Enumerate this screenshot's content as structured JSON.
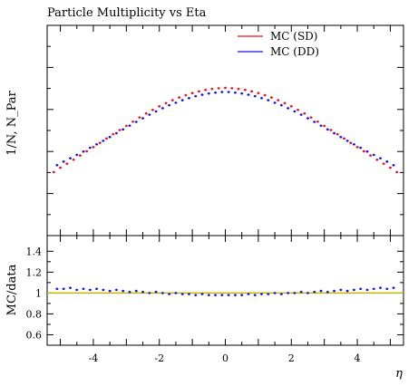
{
  "chart_data": {
    "type": "scatter",
    "title": "Particle Multiplicity vs Eta",
    "xlabel": "η",
    "ylabel": "1/N, N_Par",
    "xlim": [
      -5.4,
      5.4
    ],
    "main_panel": {
      "ylim": [
        0,
        1
      ],
      "y_ticks_labeled": false,
      "legend_position": "top-right",
      "series": [
        {
          "name": "MC (SD)",
          "color": "#e8141e",
          "x": [
            -5.2,
            -5.0,
            -4.8,
            -4.6,
            -4.4,
            -4.2,
            -4.0,
            -3.8,
            -3.6,
            -3.4,
            -3.2,
            -3.0,
            -2.8,
            -2.6,
            -2.4,
            -2.2,
            -2.0,
            -1.8,
            -1.6,
            -1.4,
            -1.2,
            -1.0,
            -0.8,
            -0.6,
            -0.4,
            -0.2,
            0.0,
            0.2,
            0.4,
            0.6,
            0.8,
            1.0,
            1.2,
            1.4,
            1.6,
            1.8,
            2.0,
            2.2,
            2.4,
            2.6,
            2.8,
            3.0,
            3.2,
            3.4,
            3.6,
            3.8,
            4.0,
            4.2,
            4.4,
            4.6,
            4.8,
            5.0,
            5.2
          ],
          "y": [
            0.302,
            0.323,
            0.342,
            0.361,
            0.381,
            0.401,
            0.421,
            0.441,
            0.462,
            0.482,
            0.502,
            0.522,
            0.542,
            0.562,
            0.581,
            0.598,
            0.615,
            0.63,
            0.644,
            0.657,
            0.668,
            0.678,
            0.686,
            0.693,
            0.698,
            0.701,
            0.703,
            0.701,
            0.698,
            0.693,
            0.686,
            0.678,
            0.668,
            0.657,
            0.644,
            0.63,
            0.615,
            0.598,
            0.581,
            0.562,
            0.542,
            0.522,
            0.502,
            0.482,
            0.462,
            0.441,
            0.421,
            0.401,
            0.381,
            0.361,
            0.342,
            0.323,
            0.302
          ]
        },
        {
          "name": "MC (DD)",
          "color": "#1414e6",
          "x": [
            -5.1,
            -4.9,
            -4.7,
            -4.5,
            -4.3,
            -4.1,
            -3.9,
            -3.7,
            -3.5,
            -3.3,
            -3.1,
            -2.9,
            -2.7,
            -2.5,
            -2.3,
            -2.1,
            -1.9,
            -1.7,
            -1.5,
            -1.3,
            -1.1,
            -0.9,
            -0.7,
            -0.5,
            -0.3,
            -0.1,
            0.1,
            0.3,
            0.5,
            0.7,
            0.9,
            1.1,
            1.3,
            1.5,
            1.7,
            1.9,
            2.1,
            2.3,
            2.5,
            2.7,
            2.9,
            3.1,
            3.3,
            3.5,
            3.7,
            3.9,
            4.1,
            4.3,
            4.5,
            4.7,
            4.9,
            5.1
          ],
          "y": [
            0.335,
            0.352,
            0.368,
            0.384,
            0.4,
            0.418,
            0.434,
            0.451,
            0.469,
            0.487,
            0.505,
            0.523,
            0.541,
            0.558,
            0.575,
            0.591,
            0.606,
            0.62,
            0.632,
            0.644,
            0.654,
            0.663,
            0.67,
            0.676,
            0.68,
            0.683,
            0.683,
            0.68,
            0.676,
            0.67,
            0.663,
            0.654,
            0.644,
            0.632,
            0.62,
            0.606,
            0.591,
            0.575,
            0.558,
            0.541,
            0.523,
            0.505,
            0.487,
            0.469,
            0.451,
            0.434,
            0.418,
            0.4,
            0.384,
            0.368,
            0.352,
            0.335
          ]
        }
      ]
    },
    "ratio_panel": {
      "ylabel": "MC/data",
      "ylim": [
        0.5,
        1.55
      ],
      "y_ticks": [
        0.6,
        0.8,
        1,
        1.2,
        1.4
      ],
      "y_tick_labels": [
        "0.6",
        "0.8",
        "1",
        "1.2",
        "1.4"
      ],
      "x_ticks": [
        -4,
        -2,
        0,
        2,
        4
      ],
      "x_tick_labels": [
        "-4",
        "-2",
        "0",
        "2",
        "4"
      ],
      "reference_line": {
        "y": 1,
        "color": "#c8b400"
      },
      "series": [
        {
          "name": "MC (DD)",
          "color": "#1414e6",
          "x": [
            -5.1,
            -4.9,
            -4.7,
            -4.5,
            -4.3,
            -4.1,
            -3.9,
            -3.7,
            -3.5,
            -3.3,
            -3.1,
            -2.9,
            -2.7,
            -2.5,
            -2.3,
            -2.1,
            -1.9,
            -1.7,
            -1.5,
            -1.3,
            -1.1,
            -0.9,
            -0.7,
            -0.5,
            -0.3,
            -0.1,
            0.1,
            0.3,
            0.5,
            0.7,
            0.9,
            1.1,
            1.3,
            1.5,
            1.7,
            1.9,
            2.1,
            2.3,
            2.5,
            2.7,
            2.9,
            3.1,
            3.3,
            3.5,
            3.7,
            3.9,
            4.1,
            4.3,
            4.5,
            4.7,
            4.9,
            5.1
          ],
          "y": [
            1.04,
            1.04,
            1.05,
            1.03,
            1.04,
            1.03,
            1.04,
            1.03,
            1.02,
            1.03,
            1.02,
            1.01,
            1.02,
            1.01,
            1.0,
            1.01,
            1.0,
            0.99,
            1.0,
            0.99,
            0.99,
            0.98,
            0.99,
            0.98,
            0.98,
            0.98,
            0.98,
            0.98,
            0.98,
            0.99,
            0.98,
            0.99,
            0.99,
            1.0,
            0.99,
            1.0,
            1.0,
            1.01,
            1.0,
            1.01,
            1.02,
            1.01,
            1.02,
            1.03,
            1.02,
            1.03,
            1.04,
            1.03,
            1.04,
            1.05,
            1.04,
            1.05
          ]
        }
      ]
    },
    "grid": false
  }
}
